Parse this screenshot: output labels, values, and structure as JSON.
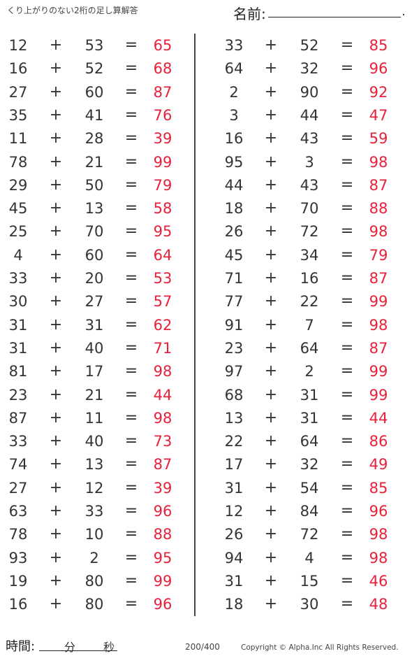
{
  "header": {
    "title": "くり上がりのない2桁の足し算解答",
    "name_label": "名前:",
    "name_end": "."
  },
  "footer": {
    "time_label": "時間:",
    "minutes": "分",
    "seconds": "秒",
    "page": "200/400",
    "copyright": "Copyright ©  Alpha.Inc All Rights Reserved."
  },
  "symbols": {
    "plus": "+",
    "equals": "="
  },
  "colors": {
    "answer": "#e8203a"
  },
  "left": [
    [
      "12",
      "53",
      "65"
    ],
    [
      "16",
      "52",
      "68"
    ],
    [
      "27",
      "60",
      "87"
    ],
    [
      "35",
      "41",
      "76"
    ],
    [
      "11",
      "28",
      "39"
    ],
    [
      "78",
      "21",
      "99"
    ],
    [
      "29",
      "50",
      "79"
    ],
    [
      "45",
      "13",
      "58"
    ],
    [
      "25",
      "70",
      "95"
    ],
    [
      "4",
      "60",
      "64"
    ],
    [
      "33",
      "20",
      "53"
    ],
    [
      "30",
      "27",
      "57"
    ],
    [
      "31",
      "31",
      "62"
    ],
    [
      "31",
      "40",
      "71"
    ],
    [
      "81",
      "17",
      "98"
    ],
    [
      "23",
      "21",
      "44"
    ],
    [
      "87",
      "11",
      "98"
    ],
    [
      "33",
      "40",
      "73"
    ],
    [
      "74",
      "13",
      "87"
    ],
    [
      "27",
      "12",
      "39"
    ],
    [
      "63",
      "33",
      "96"
    ],
    [
      "78",
      "10",
      "88"
    ],
    [
      "93",
      "2",
      "95"
    ],
    [
      "19",
      "80",
      "99"
    ],
    [
      "16",
      "80",
      "96"
    ]
  ],
  "right": [
    [
      "33",
      "52",
      "85"
    ],
    [
      "64",
      "32",
      "96"
    ],
    [
      "2",
      "90",
      "92"
    ],
    [
      "3",
      "44",
      "47"
    ],
    [
      "16",
      "43",
      "59"
    ],
    [
      "95",
      "3",
      "98"
    ],
    [
      "44",
      "43",
      "87"
    ],
    [
      "18",
      "70",
      "88"
    ],
    [
      "26",
      "72",
      "98"
    ],
    [
      "45",
      "34",
      "79"
    ],
    [
      "71",
      "16",
      "87"
    ],
    [
      "77",
      "22",
      "99"
    ],
    [
      "91",
      "7",
      "98"
    ],
    [
      "23",
      "64",
      "87"
    ],
    [
      "97",
      "2",
      "99"
    ],
    [
      "68",
      "31",
      "99"
    ],
    [
      "13",
      "31",
      "44"
    ],
    [
      "22",
      "64",
      "86"
    ],
    [
      "17",
      "32",
      "49"
    ],
    [
      "31",
      "54",
      "85"
    ],
    [
      "12",
      "84",
      "96"
    ],
    [
      "26",
      "72",
      "98"
    ],
    [
      "94",
      "4",
      "98"
    ],
    [
      "31",
      "15",
      "46"
    ],
    [
      "18",
      "30",
      "48"
    ]
  ]
}
